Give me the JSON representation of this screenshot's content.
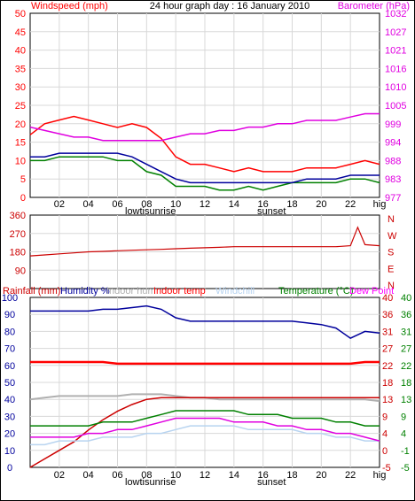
{
  "title": "24 hour graph day : 16 January 2010",
  "colors": {
    "red": "#ff0000",
    "darkred": "#cc0000",
    "green": "#008000",
    "darkgreen": "#006400",
    "blue": "#00009c",
    "magenta": "#e000e0",
    "grey": "#b0b0b0",
    "lightblue": "#b8d4f0",
    "brightmagenta": "#ff00ff"
  },
  "x_ticks": [
    "02",
    "04",
    "06",
    "08",
    "10",
    "12",
    "14",
    "16",
    "18",
    "20",
    "22",
    "hig"
  ],
  "x_annotations": [
    "lowtisunrise",
    "sunset"
  ],
  "panel1": {
    "left_label": "Windspeed (mph)",
    "right_label": "Barometer (hPa)",
    "left_ticks": [
      "0",
      "5",
      "10",
      "15",
      "20",
      "25",
      "30",
      "35",
      "40",
      "45",
      "50"
    ],
    "right_ticks": [
      "977",
      "983",
      "988",
      "994",
      "999",
      "1005",
      "1010",
      "1016",
      "1021",
      "1027",
      "1032"
    ]
  },
  "panel2": {
    "left_ticks": [
      "90",
      "180",
      "270",
      "360"
    ],
    "right_ticks": [
      "N",
      "E",
      "S",
      "W",
      "N"
    ]
  },
  "panel3": {
    "labels": [
      "Rainfall (mm)",
      "Humidity %",
      "Indoor hum",
      "Indoor temp",
      "Windchill",
      "Temperature (°C)",
      "Dew Point"
    ],
    "left_ticks": [
      "0",
      "10",
      "20",
      "30",
      "40",
      "50",
      "60",
      "70",
      "80",
      "90",
      "100"
    ],
    "right1_ticks": [
      "-5",
      "0",
      "4",
      "9",
      "13",
      "18",
      "22",
      "27",
      "31",
      "36",
      "40"
    ],
    "right2_ticks": [
      "-5",
      "-1",
      "4",
      "9",
      "13",
      "18",
      "22",
      "27",
      "31",
      "36",
      "40"
    ]
  },
  "chart_data": [
    {
      "type": "line",
      "title": "24 hour graph day : 16 January 2010",
      "xlabel": "",
      "ylabel": "Windspeed (mph)",
      "ylabel_right": "Barometer (hPa)",
      "x": [
        0,
        1,
        2,
        3,
        4,
        5,
        6,
        7,
        8,
        9,
        10,
        11,
        12,
        13,
        14,
        15,
        16,
        17,
        18,
        19,
        20,
        21,
        22,
        23,
        24
      ],
      "series": [
        {
          "name": "Windspeed (mph)",
          "axis": "left",
          "color": "#ff0000",
          "values": [
            17,
            20,
            21,
            22,
            21,
            20,
            19,
            20,
            19,
            16,
            11,
            9,
            9,
            8,
            7,
            8,
            7,
            7,
            7,
            8,
            8,
            8,
            9,
            10,
            9
          ]
        },
        {
          "name": "",
          "axis": "left",
          "color": "#008000",
          "values": [
            10,
            10,
            11,
            11,
            11,
            11,
            10,
            10,
            7,
            6,
            3,
            3,
            3,
            2,
            2,
            3,
            2,
            3,
            4,
            4,
            4,
            4,
            5,
            5,
            4
          ]
        },
        {
          "name": "",
          "axis": "left",
          "color": "#00009c",
          "values": [
            11,
            11,
            12,
            12,
            12,
            12,
            12,
            11,
            9,
            7,
            5,
            4,
            4,
            4,
            4,
            4,
            4,
            4,
            4,
            5,
            5,
            5,
            6,
            6,
            6
          ]
        },
        {
          "name": "Barometer (hPa)",
          "axis": "right",
          "color": "#e000e0",
          "values": [
            998,
            997,
            996,
            995,
            995,
            994,
            994,
            994,
            994,
            994,
            995,
            996,
            996,
            997,
            997,
            998,
            998,
            999,
            999,
            1000,
            1000,
            1000,
            1001,
            1002,
            1002
          ]
        }
      ],
      "ylim": [
        0,
        50
      ],
      "ylim_right": [
        977,
        1032
      ]
    },
    {
      "type": "line",
      "ylabel": "",
      "ylim": [
        0,
        360
      ],
      "x": [
        0,
        1,
        2,
        3,
        4,
        5,
        6,
        7,
        8,
        9,
        10,
        11,
        12,
        13,
        14,
        15,
        16,
        17,
        18,
        19,
        20,
        21,
        22,
        22.5,
        23,
        24
      ],
      "series": [
        {
          "name": "",
          "color": "#cc0000",
          "values": [
            160,
            165,
            170,
            175,
            180,
            182,
            185,
            188,
            190,
            192,
            195,
            198,
            200,
            202,
            205,
            205,
            205,
            205,
            205,
            205,
            205,
            205,
            210,
            300,
            215,
            210
          ]
        }
      ]
    },
    {
      "type": "line",
      "ylabel": "Rainfall (mm)",
      "x": [
        0,
        1,
        2,
        3,
        4,
        5,
        6,
        7,
        8,
        9,
        10,
        11,
        12,
        13,
        14,
        15,
        16,
        17,
        18,
        19,
        20,
        21,
        22,
        23,
        24
      ],
      "series": [
        {
          "name": "Humidity %",
          "axis": "left",
          "color": "#00009c",
          "values": [
            92,
            92,
            92,
            92,
            92,
            93,
            93,
            94,
            95,
            93,
            88,
            86,
            86,
            86,
            86,
            86,
            86,
            86,
            86,
            85,
            84,
            82,
            76,
            80,
            79
          ]
        },
        {
          "name": "Indoor hum",
          "axis": "left",
          "color": "#b0b0b0",
          "values": [
            40,
            41,
            42,
            42,
            42,
            42,
            42,
            43,
            43,
            43,
            42,
            41,
            41,
            40,
            40,
            40,
            40,
            40,
            40,
            40,
            40,
            40,
            40,
            40,
            39
          ]
        },
        {
          "name": "Indoor temp",
          "axis": "left",
          "color": "#ff0000",
          "values": [
            62,
            62,
            62,
            62,
            62,
            62,
            61,
            61,
            61,
            61,
            61,
            61,
            61,
            61,
            61,
            61,
            61,
            61,
            61,
            61,
            61,
            61,
            61,
            62,
            62
          ]
        },
        {
          "name": "Rainfall (mm)",
          "axis": "left",
          "color": "#cc0000",
          "values": [
            0,
            5,
            10,
            15,
            22,
            28,
            33,
            37,
            40,
            41,
            41,
            41,
            41,
            41,
            41,
            41,
            41,
            41,
            41,
            41,
            41,
            41,
            41,
            41,
            41
          ]
        },
        {
          "name": "Windchill",
          "axis": "right",
          "color": "#b8d4f0",
          "values": [
            1,
            1,
            2,
            2,
            2,
            3,
            3,
            3,
            4,
            4,
            5,
            6,
            6,
            6,
            6,
            5,
            5,
            5,
            5,
            4,
            4,
            3,
            3,
            2,
            2
          ]
        },
        {
          "name": "Temperature (°C)",
          "axis": "right",
          "color": "#008000",
          "values": [
            6,
            6,
            6,
            6,
            6,
            7,
            7,
            7,
            8,
            9,
            10,
            10,
            10,
            10,
            10,
            9,
            9,
            9,
            8,
            8,
            8,
            7,
            7,
            6,
            6
          ]
        },
        {
          "name": "Dew Point",
          "axis": "right",
          "color": "#e000e0",
          "values": [
            3,
            3,
            3,
            3,
            4,
            4,
            5,
            5,
            6,
            7,
            8,
            8,
            8,
            8,
            7,
            7,
            7,
            6,
            6,
            5,
            5,
            4,
            4,
            3,
            2
          ]
        }
      ],
      "ylim": [
        0,
        100
      ],
      "ylim_right": [
        -5,
        40
      ]
    }
  ]
}
